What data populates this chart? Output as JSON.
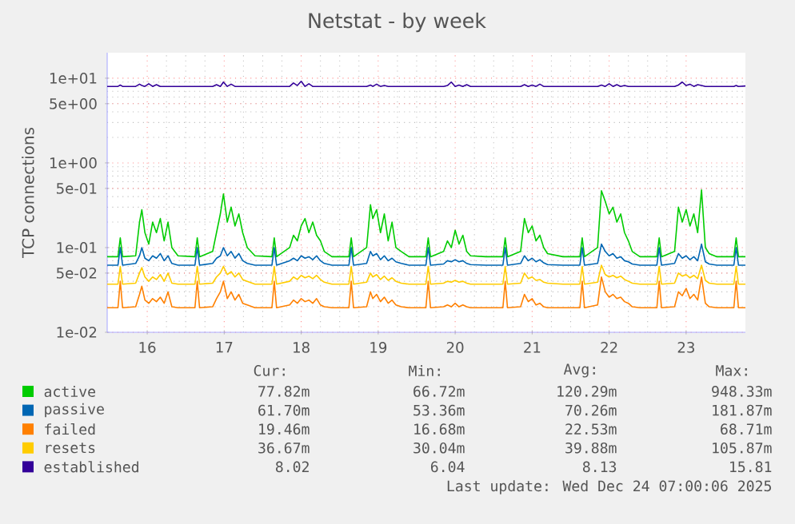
{
  "chart_data": {
    "type": "line",
    "title": "Netstat - by week",
    "ylabel": "TCP connections",
    "log": true,
    "grid": true,
    "legend": "bottom",
    "xlim": [
      15.48,
      23.77
    ],
    "xticks": [
      16,
      17,
      18,
      19,
      20,
      21,
      22,
      23
    ],
    "ylim": [
      0.01,
      20
    ],
    "yticks": [
      {
        "value": 0.01,
        "label": "1e-02"
      },
      {
        "value": 0.05,
        "label": "5e-02"
      },
      {
        "value": 0.1,
        "label": "1e-01"
      },
      {
        "value": 0.5,
        "label": "5e-01"
      },
      {
        "value": 1,
        "label": "1e+00"
      },
      {
        "value": 5,
        "label": "5e+00"
      },
      {
        "value": 10,
        "label": "1e+01"
      }
    ],
    "x": [
      15.48,
      15.62,
      15.65,
      15.68,
      15.85,
      15.9,
      15.93,
      15.97,
      16.02,
      16.07,
      16.12,
      16.17,
      16.22,
      16.27,
      16.32,
      16.4,
      16.62,
      16.65,
      16.68,
      16.85,
      16.9,
      16.95,
      16.99,
      17.04,
      17.09,
      17.14,
      17.19,
      17.24,
      17.3,
      17.4,
      17.62,
      17.65,
      17.68,
      17.85,
      17.9,
      17.95,
      18.0,
      18.05,
      18.1,
      18.15,
      18.2,
      18.25,
      18.3,
      18.4,
      18.62,
      18.65,
      18.68,
      18.85,
      18.9,
      18.93,
      18.98,
      19.03,
      19.08,
      19.13,
      19.18,
      19.23,
      19.3,
      19.4,
      19.62,
      19.65,
      19.68,
      19.85,
      19.9,
      19.95,
      20.0,
      20.05,
      20.1,
      20.15,
      20.2,
      20.4,
      20.62,
      20.65,
      20.68,
      20.85,
      20.9,
      20.95,
      21.0,
      21.05,
      21.1,
      21.15,
      21.2,
      21.4,
      21.62,
      21.65,
      21.68,
      21.85,
      21.9,
      21.95,
      22.0,
      22.05,
      22.1,
      22.15,
      22.2,
      22.25,
      22.3,
      22.4,
      22.62,
      22.65,
      22.68,
      22.85,
      22.9,
      22.95,
      23.0,
      23.05,
      23.1,
      23.15,
      23.2,
      23.25,
      23.3,
      23.4,
      23.62,
      23.65,
      23.68,
      23.77
    ],
    "series": [
      {
        "name": "active",
        "color": "#00cc00",
        "values": [
          0.078,
          0.078,
          0.13,
          0.078,
          0.08,
          0.2,
          0.28,
          0.15,
          0.11,
          0.2,
          0.15,
          0.22,
          0.12,
          0.2,
          0.1,
          0.08,
          0.078,
          0.13,
          0.078,
          0.09,
          0.15,
          0.25,
          0.43,
          0.2,
          0.3,
          0.18,
          0.25,
          0.15,
          0.1,
          0.08,
          0.078,
          0.13,
          0.078,
          0.1,
          0.14,
          0.12,
          0.18,
          0.22,
          0.15,
          0.2,
          0.14,
          0.12,
          0.09,
          0.078,
          0.078,
          0.13,
          0.078,
          0.1,
          0.32,
          0.22,
          0.28,
          0.15,
          0.25,
          0.12,
          0.2,
          0.1,
          0.09,
          0.078,
          0.078,
          0.13,
          0.078,
          0.09,
          0.12,
          0.1,
          0.16,
          0.11,
          0.14,
          0.09,
          0.08,
          0.078,
          0.078,
          0.13,
          0.078,
          0.09,
          0.22,
          0.15,
          0.18,
          0.12,
          0.14,
          0.1,
          0.085,
          0.078,
          0.078,
          0.13,
          0.078,
          0.1,
          0.47,
          0.35,
          0.25,
          0.3,
          0.2,
          0.25,
          0.15,
          0.12,
          0.09,
          0.078,
          0.078,
          0.13,
          0.078,
          0.09,
          0.3,
          0.2,
          0.28,
          0.18,
          0.25,
          0.15,
          0.48,
          0.1,
          0.085,
          0.078,
          0.078,
          0.13,
          0.078,
          0.078
        ]
      },
      {
        "name": "passive",
        "color": "#0066b3",
        "values": [
          0.062,
          0.062,
          0.1,
          0.062,
          0.065,
          0.08,
          0.1,
          0.075,
          0.07,
          0.08,
          0.075,
          0.085,
          0.07,
          0.08,
          0.065,
          0.062,
          0.062,
          0.1,
          0.062,
          0.065,
          0.075,
          0.08,
          0.1,
          0.08,
          0.09,
          0.075,
          0.085,
          0.07,
          0.065,
          0.062,
          0.062,
          0.1,
          0.062,
          0.07,
          0.075,
          0.07,
          0.08,
          0.075,
          0.078,
          0.072,
          0.08,
          0.07,
          0.065,
          0.062,
          0.062,
          0.1,
          0.062,
          0.065,
          0.09,
          0.08,
          0.085,
          0.072,
          0.08,
          0.07,
          0.075,
          0.068,
          0.065,
          0.062,
          0.062,
          0.1,
          0.062,
          0.064,
          0.07,
          0.068,
          0.072,
          0.068,
          0.07,
          0.065,
          0.063,
          0.062,
          0.062,
          0.1,
          0.062,
          0.065,
          0.08,
          0.07,
          0.075,
          0.068,
          0.072,
          0.066,
          0.063,
          0.062,
          0.062,
          0.1,
          0.062,
          0.065,
          0.11,
          0.09,
          0.08,
          0.085,
          0.075,
          0.078,
          0.07,
          0.068,
          0.064,
          0.062,
          0.062,
          0.1,
          0.062,
          0.065,
          0.085,
          0.075,
          0.08,
          0.072,
          0.078,
          0.07,
          0.11,
          0.068,
          0.064,
          0.062,
          0.062,
          0.1,
          0.062,
          0.062
        ]
      },
      {
        "name": "failed",
        "color": "#ff8000",
        "values": [
          0.0195,
          0.0195,
          0.04,
          0.0195,
          0.02,
          0.028,
          0.035,
          0.024,
          0.022,
          0.025,
          0.023,
          0.026,
          0.022,
          0.03,
          0.02,
          0.0195,
          0.0195,
          0.04,
          0.0195,
          0.02,
          0.025,
          0.03,
          0.04,
          0.025,
          0.03,
          0.024,
          0.028,
          0.022,
          0.021,
          0.0195,
          0.0195,
          0.04,
          0.0195,
          0.021,
          0.024,
          0.022,
          0.025,
          0.023,
          0.024,
          0.022,
          0.025,
          0.021,
          0.02,
          0.0195,
          0.0195,
          0.04,
          0.0195,
          0.02,
          0.03,
          0.025,
          0.028,
          0.023,
          0.026,
          0.022,
          0.024,
          0.021,
          0.02,
          0.0195,
          0.0195,
          0.04,
          0.0195,
          0.02,
          0.021,
          0.02,
          0.022,
          0.02,
          0.021,
          0.02,
          0.0195,
          0.0195,
          0.0195,
          0.04,
          0.0195,
          0.02,
          0.028,
          0.023,
          0.025,
          0.021,
          0.022,
          0.02,
          0.0195,
          0.0195,
          0.0195,
          0.04,
          0.0195,
          0.021,
          0.045,
          0.03,
          0.026,
          0.028,
          0.025,
          0.026,
          0.023,
          0.022,
          0.02,
          0.0195,
          0.0195,
          0.04,
          0.0195,
          0.02,
          0.03,
          0.027,
          0.033,
          0.025,
          0.028,
          0.024,
          0.045,
          0.022,
          0.02,
          0.0195,
          0.0195,
          0.04,
          0.0195,
          0.0195
        ]
      },
      {
        "name": "resets",
        "color": "#ffcc00",
        "values": [
          0.037,
          0.037,
          0.06,
          0.037,
          0.038,
          0.05,
          0.058,
          0.045,
          0.04,
          0.045,
          0.042,
          0.048,
          0.04,
          0.05,
          0.038,
          0.037,
          0.037,
          0.06,
          0.037,
          0.038,
          0.045,
          0.05,
          0.06,
          0.048,
          0.052,
          0.045,
          0.05,
          0.042,
          0.04,
          0.037,
          0.037,
          0.06,
          0.037,
          0.04,
          0.045,
          0.042,
          0.047,
          0.044,
          0.046,
          0.043,
          0.047,
          0.042,
          0.039,
          0.037,
          0.037,
          0.06,
          0.037,
          0.039,
          0.05,
          0.045,
          0.048,
          0.042,
          0.046,
          0.041,
          0.044,
          0.04,
          0.038,
          0.037,
          0.037,
          0.06,
          0.037,
          0.038,
          0.04,
          0.039,
          0.041,
          0.039,
          0.04,
          0.038,
          0.037,
          0.037,
          0.037,
          0.06,
          0.037,
          0.038,
          0.05,
          0.043,
          0.045,
          0.041,
          0.042,
          0.039,
          0.038,
          0.037,
          0.037,
          0.06,
          0.037,
          0.039,
          0.062,
          0.048,
          0.045,
          0.047,
          0.044,
          0.046,
          0.042,
          0.04,
          0.038,
          0.037,
          0.037,
          0.06,
          0.037,
          0.038,
          0.05,
          0.046,
          0.048,
          0.044,
          0.047,
          0.043,
          0.062,
          0.041,
          0.038,
          0.037,
          0.037,
          0.06,
          0.037,
          0.037
        ]
      },
      {
        "name": "established",
        "color": "#330099",
        "values": [
          8,
          8,
          8.3,
          8,
          8,
          8.5,
          8.2,
          8,
          8.6,
          8,
          8.4,
          8,
          8,
          8,
          8,
          8,
          8,
          8,
          8,
          8,
          8.4,
          8,
          9,
          8,
          8.5,
          8,
          8,
          8,
          8,
          8,
          8,
          8,
          8,
          8,
          8.8,
          8.2,
          9.2,
          8,
          8.6,
          8,
          8,
          8,
          8,
          8,
          8,
          8,
          8,
          8,
          8.3,
          8,
          8.5,
          8,
          8.2,
          8,
          8,
          8,
          8,
          8,
          8,
          8,
          8,
          8,
          8.2,
          9,
          8,
          8.3,
          8,
          8.4,
          8,
          8,
          8,
          8,
          8,
          8,
          8.4,
          8,
          8.3,
          8,
          8.5,
          8,
          8,
          8,
          8,
          8,
          8,
          8,
          8.3,
          8,
          8.6,
          8,
          8.4,
          8,
          8.2,
          8,
          8,
          8,
          8,
          8,
          8,
          8,
          8.3,
          9,
          8.2,
          8.5,
          8,
          8.4,
          8.2,
          8,
          8,
          8,
          8,
          8.2,
          8,
          8.1
        ]
      }
    ],
    "annotations": [
      "Cur:",
      "Min:",
      "Avg:",
      "Max:",
      "77.82m",
      "66.72m",
      "120.29m",
      "948.33m",
      "61.70m",
      "53.36m",
      "70.26m",
      "181.87m",
      "19.46m",
      "16.68m",
      "22.53m",
      "68.71m",
      "36.67m",
      "30.04m",
      "39.88m",
      "105.87m",
      "8.02",
      "6.04",
      "8.13",
      "15.81",
      "Last update: Wed Dec 24 07:00:06 2025"
    ]
  }
}
